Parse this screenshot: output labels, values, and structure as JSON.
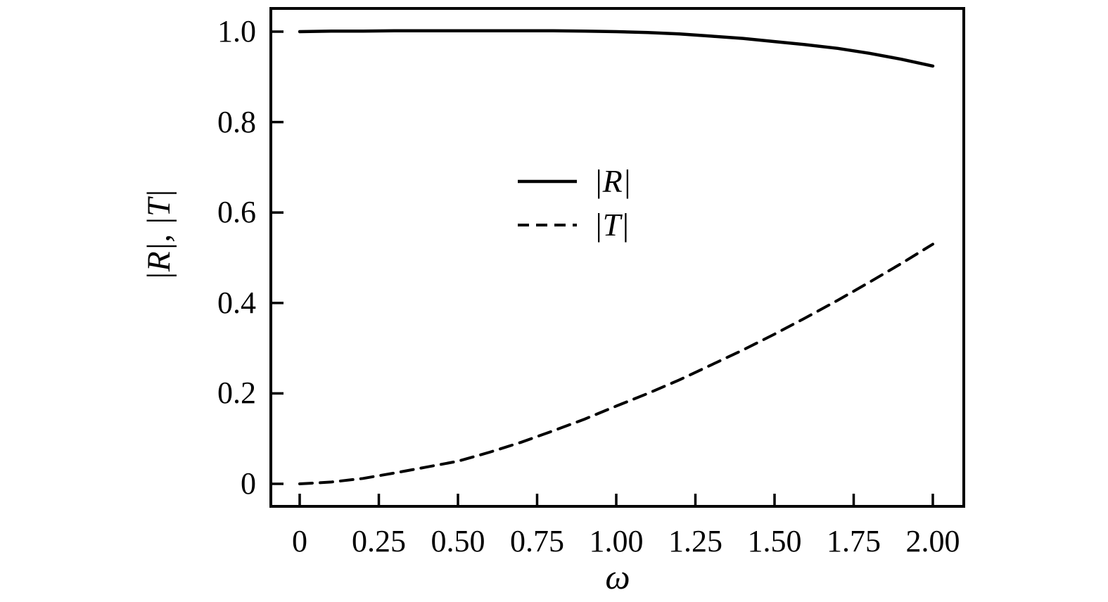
{
  "figure": {
    "background": "#ffffff",
    "line_color": "#000000"
  },
  "chart_data": {
    "type": "line",
    "title": "",
    "xlabel": "ω",
    "ylabel": "|R|, |T|",
    "xlim": [
      -0.0911,
      2.0978
    ],
    "ylim": [
      -0.0498,
      1.0513
    ],
    "grid": false,
    "x_ticks": [
      0,
      0.25,
      0.5,
      0.75,
      1.0,
      1.25,
      1.5,
      1.75,
      2.0
    ],
    "x_tick_labels": [
      "0",
      "0.25",
      "0.50",
      "0.75",
      "1.00",
      "1.25",
      "1.50",
      "1.75",
      "2.00"
    ],
    "y_ticks": [
      0,
      0.2,
      0.4,
      0.6,
      0.8,
      1.0
    ],
    "y_tick_labels": [
      "0",
      "0.2",
      "0.4",
      "0.6",
      "0.8",
      "1.0"
    ],
    "legend": {
      "frame": false,
      "position": "center-inside",
      "entries": [
        {
          "label": "|R|",
          "style": "solid"
        },
        {
          "label": "|T|",
          "style": "dashed"
        }
      ]
    },
    "series": [
      {
        "name": "|R|",
        "style": "solid",
        "color": "#000000",
        "x": [
          0.0,
          0.1,
          0.2,
          0.3,
          0.4,
          0.5,
          0.6,
          0.7,
          0.8,
          0.9,
          1.0,
          1.1,
          1.2,
          1.3,
          1.4,
          1.5,
          1.6,
          1.7,
          1.8,
          1.9,
          2.0
        ],
        "values": [
          1.0,
          1.001,
          1.001,
          1.002,
          1.002,
          1.002,
          1.002,
          1.002,
          1.002,
          1.001,
          1.0,
          0.998,
          0.995,
          0.99,
          0.985,
          0.978,
          0.971,
          0.963,
          0.952,
          0.939,
          0.924
        ]
      },
      {
        "name": "|T|",
        "style": "dashed",
        "color": "#000000",
        "x": [
          0.0,
          0.1,
          0.2,
          0.3,
          0.4,
          0.5,
          0.6,
          0.7,
          0.8,
          0.9,
          1.0,
          1.1,
          1.2,
          1.3,
          1.4,
          1.5,
          1.6,
          1.7,
          1.8,
          1.9,
          2.0
        ],
        "values": [
          0.0,
          0.004,
          0.012,
          0.024,
          0.037,
          0.05,
          0.07,
          0.092,
          0.117,
          0.143,
          0.172,
          0.2,
          0.23,
          0.263,
          0.296,
          0.331,
          0.368,
          0.406,
          0.446,
          0.487,
          0.53
        ]
      }
    ]
  }
}
